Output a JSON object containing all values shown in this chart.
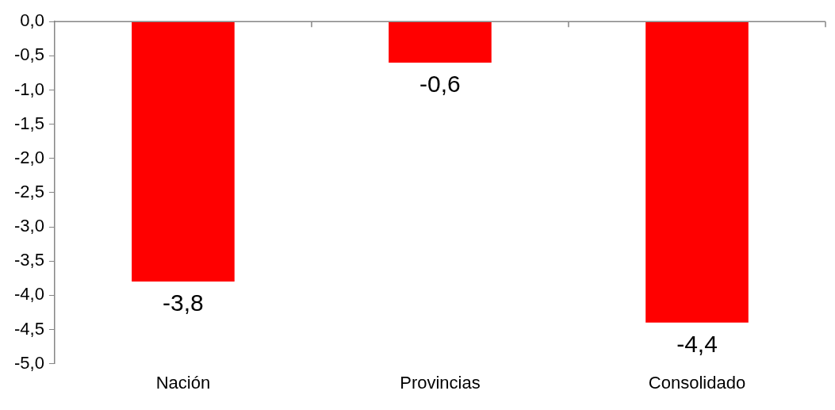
{
  "chart_data": {
    "type": "bar",
    "categories": [
      "Nación",
      "Provincias",
      "Consolidado"
    ],
    "values": [
      -3.8,
      -0.6,
      -4.4
    ],
    "color": "#ff0000",
    "value_labels": [
      "-3,8",
      "-0,6",
      "-4,4"
    ],
    "ylim": [
      -5,
      0
    ],
    "yticks": [
      {
        "value": 0,
        "label": "0,0"
      },
      {
        "value": -0.5,
        "label": "-0,5"
      },
      {
        "value": -1,
        "label": "-1,0"
      },
      {
        "value": -1.5,
        "label": "-1,5"
      },
      {
        "value": -2,
        "label": "-2,0"
      },
      {
        "value": -2.5,
        "label": "-2,5"
      },
      {
        "value": -3,
        "label": "-3,0"
      },
      {
        "value": -3.5,
        "label": "-3,5"
      },
      {
        "value": -4,
        "label": "-4,0"
      },
      {
        "value": -4.5,
        "label": "-4,5"
      },
      {
        "value": -5,
        "label": "-5,0"
      }
    ],
    "grid": false,
    "legend": false
  }
}
